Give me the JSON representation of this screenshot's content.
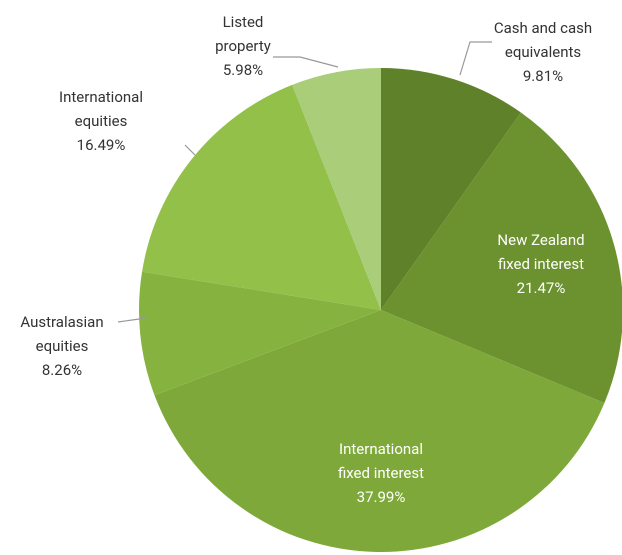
{
  "chart_data": {
    "type": "pie",
    "categories": [
      "Cash and cash equivalents",
      "New Zealand fixed interest",
      "International fixed interest",
      "Australasian equities",
      "International equities",
      "Listed property"
    ],
    "values": [
      9.81,
      21.47,
      37.99,
      8.26,
      16.49,
      5.98
    ],
    "value_labels": [
      "9.81%",
      "21.47%",
      "37.99%",
      "8.26%",
      "16.49%",
      "5.98%"
    ],
    "colors": [
      "#5f8129",
      "#6c912f",
      "#7ea93a",
      "#86b240",
      "#93c049",
      "#a9cd79"
    ]
  }
}
